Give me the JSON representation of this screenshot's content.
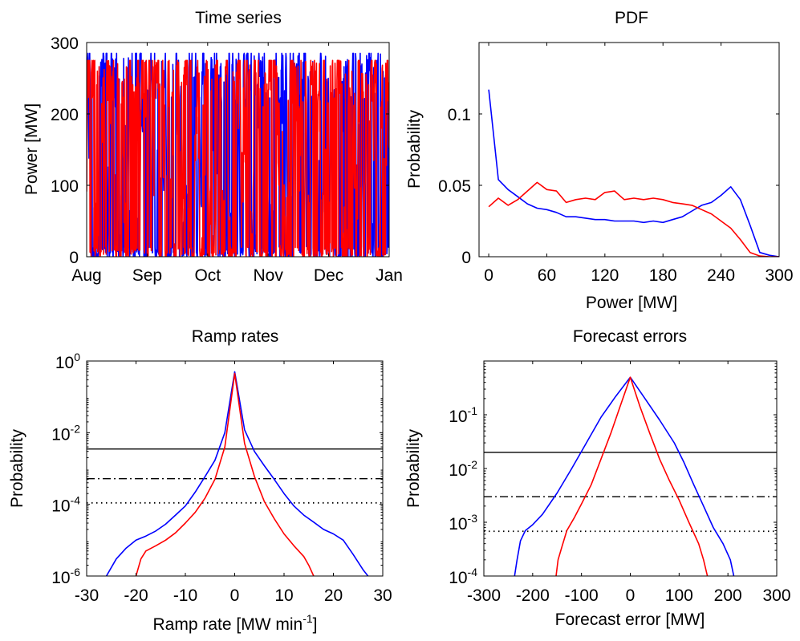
{
  "colors": {
    "series_blue": "#0000ff",
    "series_red": "#ff0000",
    "axis": "#000000",
    "background": "#ffffff"
  },
  "chart_data": [
    {
      "id": "time",
      "type": "line",
      "title": "Time series",
      "xlabel": "",
      "ylabel": "Power [MW]",
      "xticks": [
        "Aug",
        "Sep",
        "Oct",
        "Nov",
        "Dec",
        "Jan"
      ],
      "yticks": [
        "0",
        "100",
        "200",
        "300"
      ],
      "ylim": [
        0,
        300
      ],
      "xscale": "time",
      "grid": false,
      "series": [
        {
          "color": "#0000ff",
          "description": "rapidly fluctuating power between 0 and ~285 MW, Aug to Jan"
        },
        {
          "color": "#ff0000",
          "description": "rapidly fluctuating power between 0 and ~275 MW, Aug to Jan"
        }
      ]
    },
    {
      "id": "pdf",
      "type": "line",
      "title": "PDF",
      "xlabel": "Power [MW]",
      "ylabel": "Probability",
      "xlim": [
        -10,
        300
      ],
      "ylim": [
        0,
        0.15
      ],
      "xticks": [
        "0",
        "60",
        "120",
        "180",
        "240",
        "300"
      ],
      "yticks": [
        "0",
        "0.05",
        "0.1"
      ],
      "grid": false,
      "series": [
        {
          "color": "#0000ff",
          "x": [
            0,
            10,
            20,
            30,
            40,
            50,
            60,
            70,
            80,
            90,
            100,
            110,
            120,
            130,
            140,
            150,
            160,
            170,
            180,
            190,
            200,
            210,
            220,
            230,
            240,
            250,
            260,
            270,
            280,
            290,
            300
          ],
          "y": [
            0.117,
            0.054,
            0.047,
            0.042,
            0.037,
            0.034,
            0.033,
            0.031,
            0.028,
            0.028,
            0.027,
            0.026,
            0.026,
            0.025,
            0.025,
            0.025,
            0.024,
            0.025,
            0.024,
            0.026,
            0.028,
            0.032,
            0.036,
            0.038,
            0.043,
            0.049,
            0.04,
            0.022,
            0.003,
            0.001,
            0.0
          ]
        },
        {
          "color": "#ff0000",
          "x": [
            0,
            10,
            20,
            30,
            40,
            50,
            60,
            70,
            80,
            90,
            100,
            110,
            120,
            130,
            140,
            150,
            160,
            170,
            180,
            190,
            200,
            210,
            220,
            230,
            240,
            250,
            260,
            270,
            280,
            290,
            300
          ],
          "y": [
            0.035,
            0.041,
            0.036,
            0.04,
            0.046,
            0.052,
            0.047,
            0.046,
            0.038,
            0.04,
            0.041,
            0.04,
            0.045,
            0.046,
            0.04,
            0.041,
            0.04,
            0.041,
            0.04,
            0.038,
            0.037,
            0.036,
            0.033,
            0.03,
            0.025,
            0.02,
            0.012,
            0.003,
            0.0005,
            0.0,
            0.0
          ]
        }
      ]
    },
    {
      "id": "ramp",
      "type": "line",
      "title": "Ramp rates",
      "xlabel": "Ramp rate [MW min",
      "xlabel_sup": "-1",
      "xlabel_suffix": "]",
      "ylabel": "Probability",
      "xlim": [
        -30,
        30
      ],
      "ylim_log10": [
        -6,
        0
      ],
      "yscale": "log",
      "xticks": [
        "-30",
        "-20",
        "-10",
        "0",
        "10",
        "20",
        "30"
      ],
      "yticks": [
        {
          "base": "10",
          "exp": "-6"
        },
        {
          "base": "10",
          "exp": "-4"
        },
        {
          "base": "10",
          "exp": "-2"
        },
        {
          "base": "10",
          "exp": "0"
        }
      ],
      "grid": false,
      "hlines": [
        {
          "style": "solid",
          "y": 0.0035
        },
        {
          "style": "dashdot",
          "y": 0.00052
        },
        {
          "style": "dotted",
          "y": 0.00011
        }
      ],
      "series": [
        {
          "color": "#0000ff",
          "x": [
            -26,
            -24,
            -22,
            -20,
            -18,
            -16,
            -14,
            -12,
            -10,
            -8,
            -6,
            -4,
            -2,
            0,
            2,
            4,
            6,
            8,
            10,
            12,
            14,
            16,
            18,
            20,
            22,
            24,
            26,
            27
          ],
          "y": [
            1e-06,
            3e-06,
            6e-06,
            1e-05,
            1.3e-05,
            1.8e-05,
            2.8e-05,
            5e-05,
            9e-05,
            0.00022,
            0.0006,
            0.0017,
            0.01,
            0.5,
            0.012,
            0.003,
            0.0012,
            0.0005,
            0.0002,
            9e-05,
            5e-05,
            3.2e-05,
            2e-05,
            1.5e-05,
            1e-05,
            4e-06,
            1.5e-06,
            1e-06
          ]
        },
        {
          "color": "#ff0000",
          "x": [
            -20,
            -19,
            -18,
            -16,
            -14,
            -12,
            -10,
            -8,
            -6,
            -4,
            -2,
            0,
            2,
            4,
            6,
            8,
            10,
            12,
            14,
            15,
            16
          ],
          "y": [
            1e-06,
            3e-06,
            5e-06,
            7e-06,
            1e-05,
            1.6e-05,
            3e-05,
            6e-05,
            0.00015,
            0.0005,
            0.004,
            0.45,
            0.005,
            0.0006,
            0.00012,
            4e-05,
            1.5e-05,
            7e-06,
            3.5e-06,
            2e-06,
            1e-06
          ]
        }
      ]
    },
    {
      "id": "forecast",
      "type": "line",
      "title": "Forecast errors",
      "xlabel": "Forecast error [MW]",
      "ylabel": "Probability",
      "xlim": [
        -300,
        300
      ],
      "ylim_log10": [
        -4,
        0
      ],
      "yscale": "log",
      "xticks": [
        "-300",
        "-200",
        "-100",
        "0",
        "100",
        "200",
        "300"
      ],
      "yticks": [
        {
          "base": "10",
          "exp": "-4"
        },
        {
          "base": "10",
          "exp": "-3"
        },
        {
          "base": "10",
          "exp": "-2"
        },
        {
          "base": "10",
          "exp": "-1"
        }
      ],
      "grid": false,
      "hlines": [
        {
          "style": "solid",
          "y": 0.02
        },
        {
          "style": "dashdot",
          "y": 0.003
        },
        {
          "style": "dotted",
          "y": 0.00068
        }
      ],
      "series": [
        {
          "color": "#0000ff",
          "x": [
            -237,
            -232,
            -225,
            -215,
            -200,
            -180,
            -150,
            -120,
            -90,
            -60,
            -30,
            0,
            30,
            60,
            90,
            110,
            130,
            150,
            170,
            190,
            205,
            212
          ],
          "y": [
            0.0001,
            0.0002,
            0.00045,
            0.0007,
            0.0009,
            0.0014,
            0.0035,
            0.01,
            0.03,
            0.09,
            0.22,
            0.5,
            0.2,
            0.08,
            0.03,
            0.013,
            0.005,
            0.002,
            0.0008,
            0.0004,
            0.0002,
            0.0001
          ]
        },
        {
          "color": "#ff0000",
          "x": [
            -152,
            -148,
            -140,
            -130,
            -115,
            -100,
            -80,
            -60,
            -40,
            -20,
            0,
            20,
            40,
            60,
            80,
            100,
            120,
            140,
            150,
            158
          ],
          "y": [
            0.0001,
            0.0002,
            0.00035,
            0.0007,
            0.0012,
            0.0022,
            0.005,
            0.015,
            0.045,
            0.15,
            0.5,
            0.14,
            0.045,
            0.015,
            0.006,
            0.0026,
            0.001,
            0.0004,
            0.0002,
            0.0001
          ]
        }
      ]
    }
  ]
}
